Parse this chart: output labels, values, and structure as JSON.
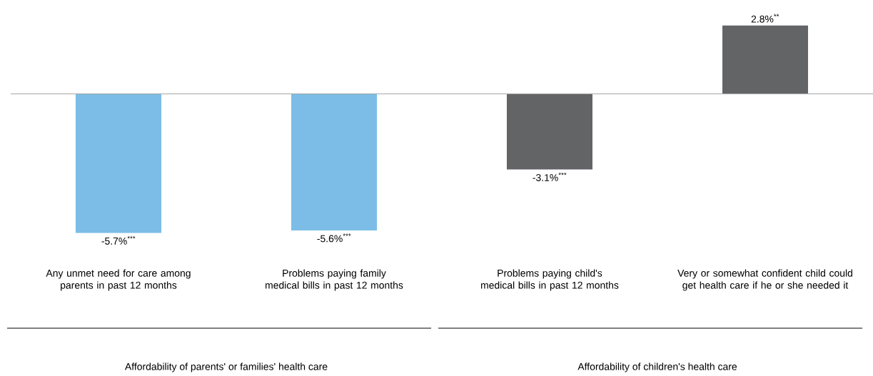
{
  "chart_data": {
    "type": "bar",
    "categories": [
      "Any unmet need for care among parents in past 12 months",
      "Problems paying family medical bills in past 12 months",
      "Problems paying child's medical bills in past 12 months",
      "Very or somewhat confident child could get health care if he or she needed it"
    ],
    "values": [
      -5.7,
      -5.6,
      -3.1,
      2.8
    ],
    "colors": [
      "#7bbde6",
      "#7bbde6",
      "#636466",
      "#636466"
    ],
    "value_labels": [
      "-5.7%$^{***}$",
      "-5.6%$^{***}$",
      "-3.1%$^{***}$",
      "2.8%$^{**}$"
    ],
    "annotations": [
      "Affordability of parents' or families' health care",
      "Affordability of children's health care"
    ]
  }
}
